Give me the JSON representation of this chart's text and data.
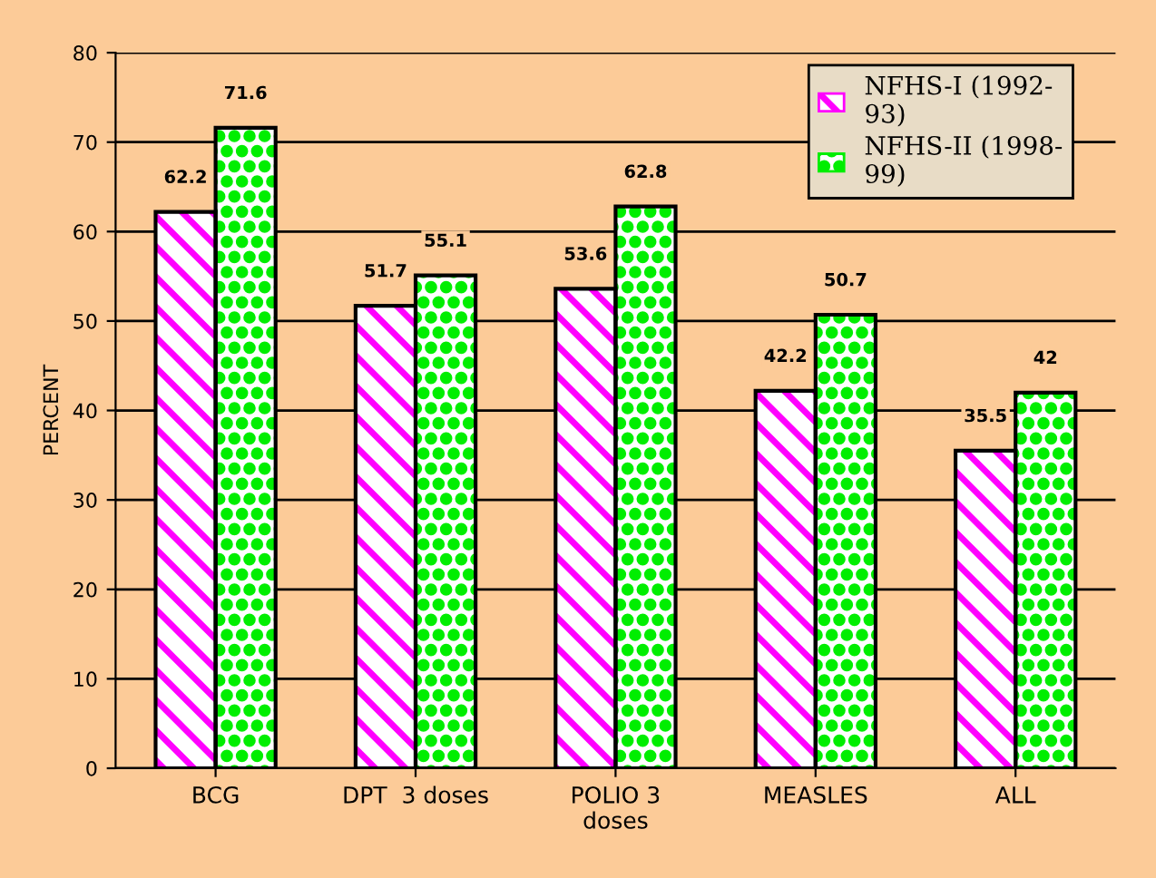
{
  "chart_data": {
    "type": "bar",
    "ylabel": "PERCENT",
    "categories": [
      "BCG",
      "DPT  3 doses",
      "POLIO 3\ndoses",
      "MEASLES",
      "ALL"
    ],
    "series": [
      {
        "name": "NFHS-I (1992-\n93)",
        "color": "#ff00ff",
        "values": [
          62.2,
          51.7,
          53.6,
          42.2,
          35.5
        ]
      },
      {
        "name": "NFHS-II (1998-\n99)",
        "color": "#00ee00",
        "values": [
          71.6,
          55.1,
          62.8,
          50.7,
          42
        ]
      }
    ],
    "ylim": [
      0,
      80
    ],
    "yticks": [
      0,
      10,
      20,
      30,
      40,
      50,
      60,
      70,
      80
    ],
    "grid": "y",
    "legend": "top right",
    "data_labels": true
  }
}
